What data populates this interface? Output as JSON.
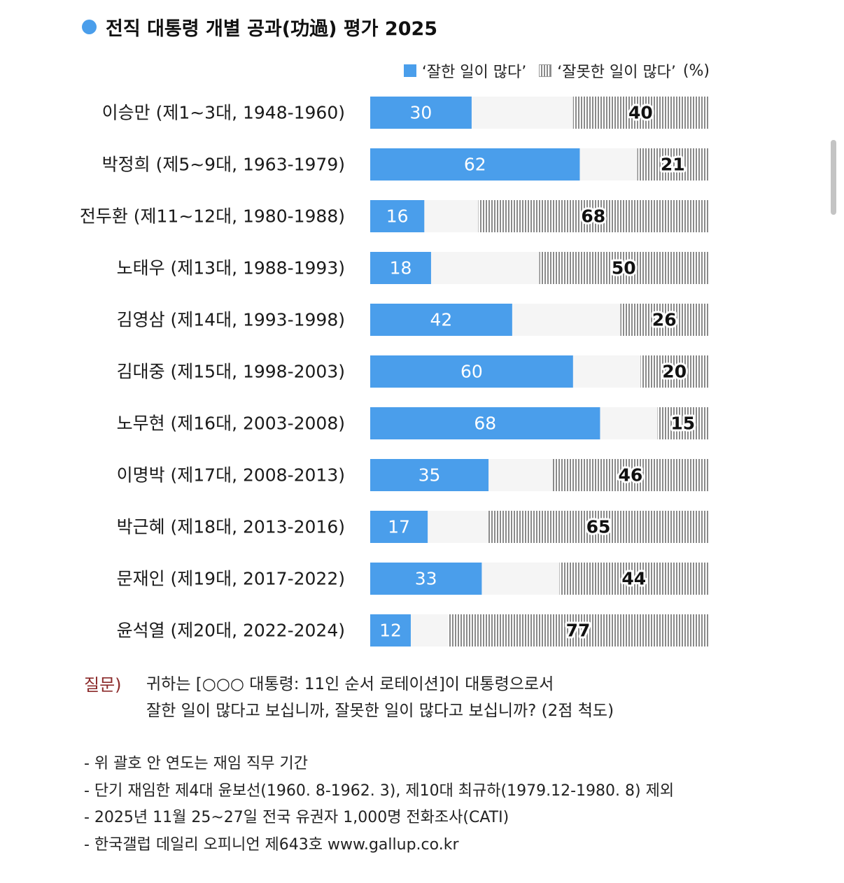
{
  "colors": {
    "good": "#4a9eeb",
    "track": "#f5f5f5",
    "stripe": "#8a8a8a",
    "question": "#8b2a2a"
  },
  "chart_data": {
    "type": "bar",
    "title": "전직 대통령 개별 공과(功過) 평가 2025",
    "legend": {
      "good": "‘잘한 일이 많다’",
      "bad": "‘잘못한 일이 많다’",
      "unit": "(%)"
    },
    "xlim": [
      0,
      100
    ],
    "categories": [
      "이승만 (제1~3대, 1948-1960)",
      "박정희 (제5~9대, 1963-1979)",
      "전두환 (제11~12대, 1980-1988)",
      "노태우 (제13대, 1988-1993)",
      "김영삼 (제14대, 1993-1998)",
      "김대중 (제15대, 1998-2003)",
      "노무현 (제16대, 2003-2008)",
      "이명박 (제17대, 2008-2013)",
      "박근혜 (제18대, 2013-2016)",
      "문재인 (제19대, 2017-2022)",
      "윤석열 (제20대, 2022-2024)"
    ],
    "series": [
      {
        "name": "‘잘한 일이 많다’",
        "values": [
          30,
          62,
          16,
          18,
          42,
          60,
          68,
          35,
          17,
          33,
          12
        ]
      },
      {
        "name": "‘잘못한 일이 많다’",
        "values": [
          40,
          21,
          68,
          50,
          26,
          20,
          15,
          46,
          65,
          44,
          77
        ]
      }
    ]
  },
  "question": {
    "label": "질문)",
    "line1": "귀하는 [○○○ 대통령: 11인 순서 로테이션]이 대통령으로서",
    "line2": "잘한 일이 많다고 보십니까, 잘못한 일이 많다고 보십니까? (2점 척도)"
  },
  "notes": [
    "- 위 괄호 안 연도는 재임 직무 기간",
    "- 단기 재임한 제4대 윤보선(1960. 8-1962. 3), 제10대 최규하(1979.12-1980. 8) 제외",
    "- 2025년 11월 25~27일 전국 유권자 1,000명 전화조사(CATI)",
    "- 한국갤럽 데일리 오피니언 제643호 www.gallup.co.kr"
  ]
}
